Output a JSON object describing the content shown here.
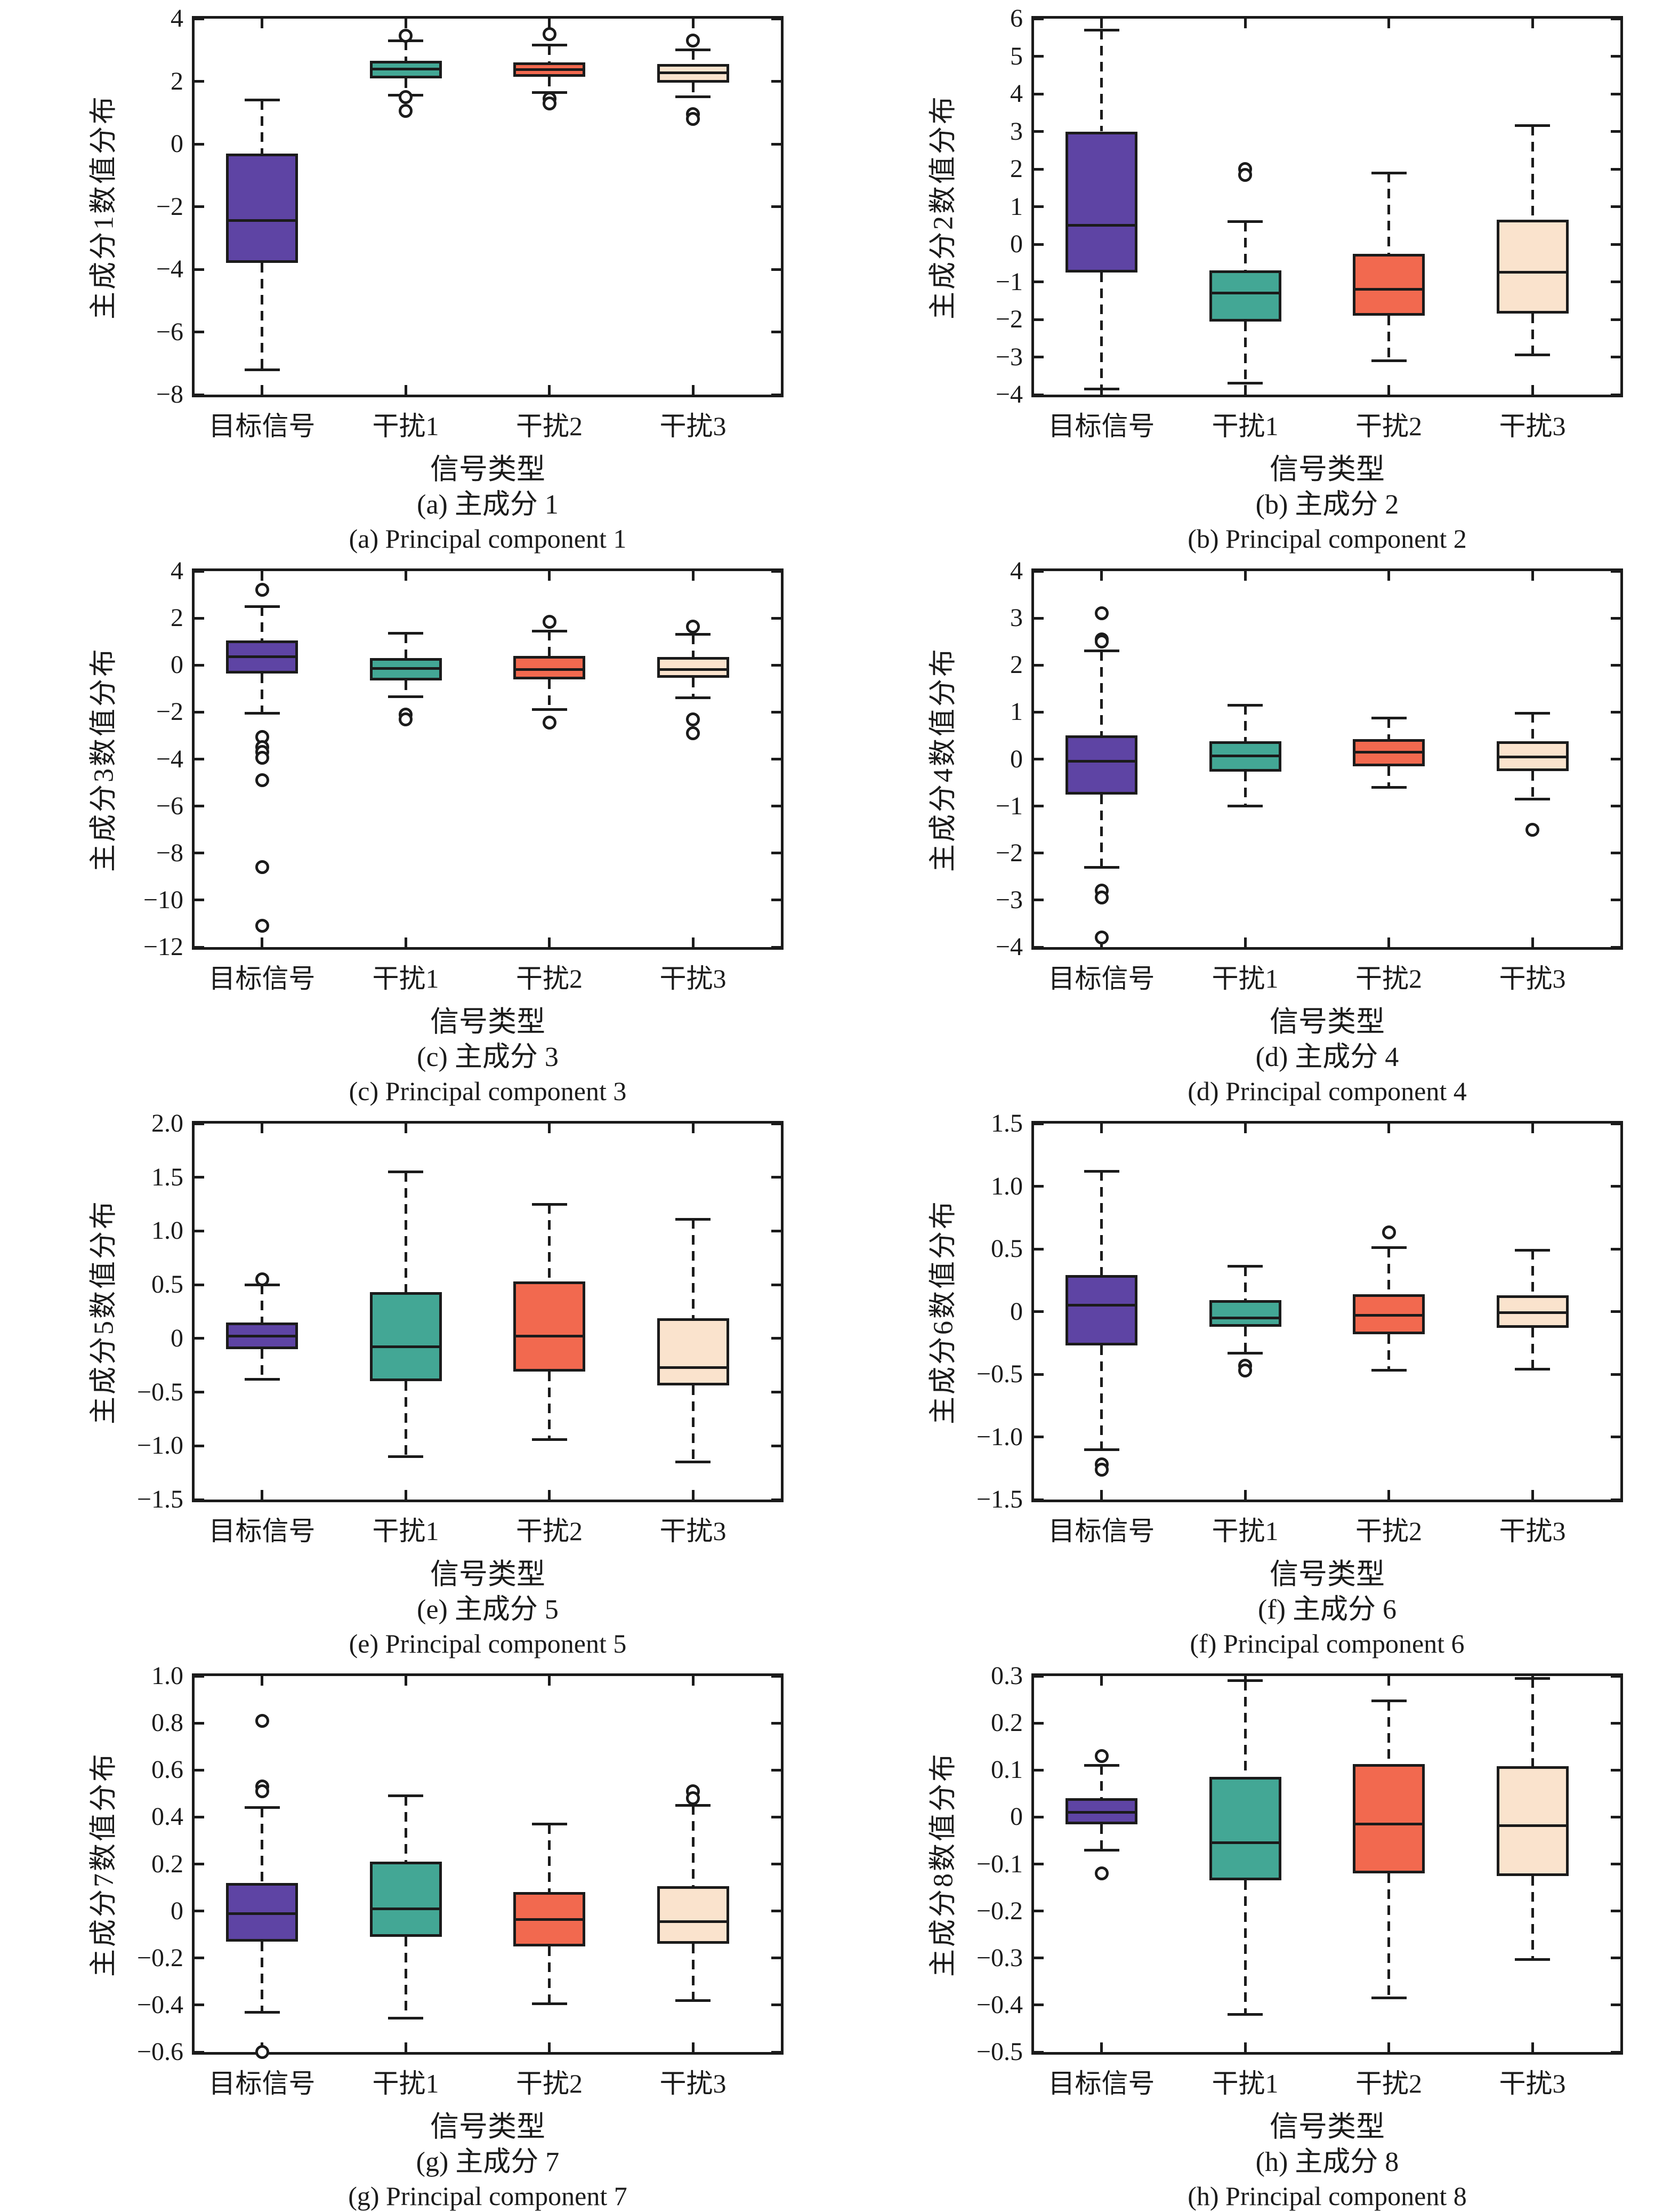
{
  "figure": {
    "background": "#ffffff",
    "xlabel": "信号类型",
    "categories": [
      "目标信号",
      "干扰1",
      "干扰2",
      "干扰3"
    ],
    "colors": {
      "target": "#5E44A4",
      "jam1": "#43A795",
      "jam2": "#F2694F",
      "jam3": "#FAE3CD",
      "line": "#1B1B1B"
    }
  },
  "chart_data": [
    {
      "id": "a",
      "type": "box",
      "ylabel": "主成分1数值分布",
      "caption_zh": "(a) 主成分 1",
      "caption_en": "(a) Principal component 1",
      "ylim": [
        -8,
        4
      ],
      "yticks": [
        {
          "v": -8,
          "label": "−8"
        },
        {
          "v": -6,
          "label": "−6"
        },
        {
          "v": -4,
          "label": "−4"
        },
        {
          "v": -2,
          "label": "−2"
        },
        {
          "v": 0,
          "label": "0"
        },
        {
          "v": 2,
          "label": "2"
        },
        {
          "v": 4,
          "label": "4"
        }
      ],
      "boxes": [
        {
          "category": "目标信号",
          "color": "target",
          "whislo": -7.2,
          "q1": -3.8,
          "med": -2.45,
          "q3": -0.3,
          "whishi": 1.4,
          "fliers": []
        },
        {
          "category": "干扰1",
          "color": "jam1",
          "whislo": 1.55,
          "q1": 2.1,
          "med": 2.4,
          "q3": 2.65,
          "whishi": 3.3,
          "fliers": [
            3.45,
            1.5,
            1.05
          ]
        },
        {
          "category": "干扰2",
          "color": "jam2",
          "whislo": 1.65,
          "q1": 2.15,
          "med": 2.38,
          "q3": 2.6,
          "whishi": 3.15,
          "fliers": [
            3.5,
            1.45,
            1.3
          ]
        },
        {
          "category": "干扰3",
          "color": "jam3",
          "whislo": 1.5,
          "q1": 1.95,
          "med": 2.28,
          "q3": 2.55,
          "whishi": 3.0,
          "fliers": [
            3.3,
            0.95,
            0.8
          ]
        }
      ]
    },
    {
      "id": "b",
      "type": "box",
      "ylabel": "主成分2数值分布",
      "caption_zh": "(b) 主成分 2",
      "caption_en": "(b) Principal component 2",
      "ylim": [
        -4,
        6
      ],
      "yticks": [
        {
          "v": -4,
          "label": "−4"
        },
        {
          "v": -3,
          "label": "−3"
        },
        {
          "v": -2,
          "label": "−2"
        },
        {
          "v": -1,
          "label": "−1"
        },
        {
          "v": 0,
          "label": "0"
        },
        {
          "v": 1,
          "label": "1"
        },
        {
          "v": 2,
          "label": "2"
        },
        {
          "v": 3,
          "label": "3"
        },
        {
          "v": 4,
          "label": "4"
        },
        {
          "v": 5,
          "label": "5"
        },
        {
          "v": 6,
          "label": "6"
        }
      ],
      "boxes": [
        {
          "category": "目标信号",
          "color": "target",
          "whislo": -3.85,
          "q1": -0.75,
          "med": 0.5,
          "q3": 3.0,
          "whishi": 5.7,
          "fliers": []
        },
        {
          "category": "干扰1",
          "color": "jam1",
          "whislo": -3.7,
          "q1": -2.05,
          "med": -1.3,
          "q3": -0.7,
          "whishi": 0.6,
          "fliers": [
            2.0,
            1.85
          ]
        },
        {
          "category": "干扰2",
          "color": "jam2",
          "whislo": -3.1,
          "q1": -1.9,
          "med": -1.2,
          "q3": -0.25,
          "whishi": 1.9,
          "fliers": []
        },
        {
          "category": "干扰3",
          "color": "jam3",
          "whislo": -2.95,
          "q1": -1.85,
          "med": -0.75,
          "q3": 0.65,
          "whishi": 3.15,
          "fliers": []
        }
      ]
    },
    {
      "id": "c",
      "type": "box",
      "ylabel": "主成分3数值分布",
      "caption_zh": "(c) 主成分 3",
      "caption_en": "(c) Principal component 3",
      "ylim": [
        -12,
        4
      ],
      "yticks": [
        {
          "v": -12,
          "label": "−12"
        },
        {
          "v": -10,
          "label": "−10"
        },
        {
          "v": -8,
          "label": "−8"
        },
        {
          "v": -6,
          "label": "−6"
        },
        {
          "v": -4,
          "label": "−4"
        },
        {
          "v": -2,
          "label": "−2"
        },
        {
          "v": 0,
          "label": "0"
        },
        {
          "v": 2,
          "label": "2"
        },
        {
          "v": 4,
          "label": "4"
        }
      ],
      "boxes": [
        {
          "category": "目标信号",
          "color": "target",
          "whislo": -2.05,
          "q1": -0.35,
          "med": 0.35,
          "q3": 1.05,
          "whishi": 2.5,
          "fliers": [
            3.2,
            -3.05,
            -3.5,
            -3.7,
            -3.95,
            -4.9,
            -8.6,
            -11.1
          ]
        },
        {
          "category": "干扰1",
          "color": "jam1",
          "whislo": -1.35,
          "q1": -0.65,
          "med": -0.15,
          "q3": 0.3,
          "whishi": 1.35,
          "fliers": [
            -2.1,
            -2.3
          ]
        },
        {
          "category": "干扰2",
          "color": "jam2",
          "whislo": -1.9,
          "q1": -0.6,
          "med": -0.18,
          "q3": 0.4,
          "whishi": 1.45,
          "fliers": [
            1.85,
            -2.45
          ]
        },
        {
          "category": "干扰3",
          "color": "jam3",
          "whislo": -1.4,
          "q1": -0.55,
          "med": -0.18,
          "q3": 0.35,
          "whishi": 1.3,
          "fliers": [
            1.65,
            -2.3,
            -2.9
          ]
        }
      ]
    },
    {
      "id": "d",
      "type": "box",
      "ylabel": "主成分4数值分布",
      "caption_zh": "(d) 主成分 4",
      "caption_en": "(d) Principal component 4",
      "ylim": [
        -4,
        4
      ],
      "yticks": [
        {
          "v": -4,
          "label": "−4"
        },
        {
          "v": -3,
          "label": "−3"
        },
        {
          "v": -2,
          "label": "−2"
        },
        {
          "v": -1,
          "label": "−1"
        },
        {
          "v": 0,
          "label": "0"
        },
        {
          "v": 1,
          "label": "1"
        },
        {
          "v": 2,
          "label": "2"
        },
        {
          "v": 3,
          "label": "3"
        },
        {
          "v": 4,
          "label": "4"
        }
      ],
      "boxes": [
        {
          "category": "目标信号",
          "color": "target",
          "whislo": -2.3,
          "q1": -0.75,
          "med": -0.05,
          "q3": 0.5,
          "whishi": 2.3,
          "fliers": [
            3.1,
            2.55,
            2.5,
            -2.8,
            -2.95,
            -3.8
          ]
        },
        {
          "category": "干扰1",
          "color": "jam1",
          "whislo": -1.0,
          "q1": -0.27,
          "med": 0.07,
          "q3": 0.38,
          "whishi": 1.15,
          "fliers": []
        },
        {
          "category": "干扰2",
          "color": "jam2",
          "whislo": -0.6,
          "q1": -0.15,
          "med": 0.15,
          "q3": 0.42,
          "whishi": 0.87,
          "fliers": []
        },
        {
          "category": "干扰3",
          "color": "jam3",
          "whislo": -0.85,
          "q1": -0.25,
          "med": 0.05,
          "q3": 0.38,
          "whishi": 0.98,
          "fliers": [
            -1.5
          ]
        }
      ]
    },
    {
      "id": "e",
      "type": "box",
      "ylabel": "主成分5数值分布",
      "caption_zh": "(e) 主成分 5",
      "caption_en": "(e) Principal component 5",
      "ylim": [
        -1.5,
        2.0
      ],
      "yticks": [
        {
          "v": -1.5,
          "label": "−1.5"
        },
        {
          "v": -1.0,
          "label": "−1.0"
        },
        {
          "v": -0.5,
          "label": "−0.5"
        },
        {
          "v": 0,
          "label": "0"
        },
        {
          "v": 0.5,
          "label": "0.5"
        },
        {
          "v": 1.0,
          "label": "1.0"
        },
        {
          "v": 1.5,
          "label": "1.5"
        },
        {
          "v": 2.0,
          "label": "2.0"
        }
      ],
      "boxes": [
        {
          "category": "目标信号",
          "color": "target",
          "whislo": -0.38,
          "q1": -0.1,
          "med": 0.02,
          "q3": 0.15,
          "whishi": 0.5,
          "fliers": [
            0.55
          ]
        },
        {
          "category": "干扰1",
          "color": "jam1",
          "whislo": -1.1,
          "q1": -0.4,
          "med": -0.08,
          "q3": 0.43,
          "whishi": 1.55,
          "fliers": []
        },
        {
          "category": "干扰2",
          "color": "jam2",
          "whislo": -0.94,
          "q1": -0.31,
          "med": 0.02,
          "q3": 0.53,
          "whishi": 1.25,
          "fliers": []
        },
        {
          "category": "干扰3",
          "color": "jam3",
          "whislo": -1.15,
          "q1": -0.44,
          "med": -0.27,
          "q3": 0.19,
          "whishi": 1.11,
          "fliers": []
        }
      ]
    },
    {
      "id": "f",
      "type": "box",
      "ylabel": "主成分6数值分布",
      "caption_zh": "(f) 主成分 6",
      "caption_en": "(f) Principal component 6",
      "ylim": [
        -1.5,
        1.5
      ],
      "yticks": [
        {
          "v": -1.5,
          "label": "−1.5"
        },
        {
          "v": -1.0,
          "label": "−1.0"
        },
        {
          "v": -0.5,
          "label": "−0.5"
        },
        {
          "v": 0,
          "label": "0"
        },
        {
          "v": 0.5,
          "label": "0.5"
        },
        {
          "v": 1.0,
          "label": "1.0"
        },
        {
          "v": 1.5,
          "label": "1.5"
        }
      ],
      "boxes": [
        {
          "category": "目标信号",
          "color": "target",
          "whislo": -1.1,
          "q1": -0.27,
          "med": 0.05,
          "q3": 0.29,
          "whishi": 1.12,
          "fliers": [
            -1.22,
            -1.26
          ]
        },
        {
          "category": "干扰1",
          "color": "jam1",
          "whislo": -0.33,
          "q1": -0.12,
          "med": -0.05,
          "q3": 0.09,
          "whishi": 0.36,
          "fliers": [
            -0.43,
            -0.47
          ]
        },
        {
          "category": "干扰2",
          "color": "jam2",
          "whislo": -0.47,
          "q1": -0.18,
          "med": -0.03,
          "q3": 0.14,
          "whishi": 0.51,
          "fliers": [
            0.63
          ]
        },
        {
          "category": "干扰3",
          "color": "jam3",
          "whislo": -0.46,
          "q1": -0.13,
          "med": -0.01,
          "q3": 0.13,
          "whishi": 0.49,
          "fliers": []
        }
      ]
    },
    {
      "id": "g",
      "type": "box",
      "ylabel": "主成分7数值分布",
      "caption_zh": "(g) 主成分 7",
      "caption_en": "(g) Principal component 7",
      "ylim": [
        -0.6,
        1.0
      ],
      "yticks": [
        {
          "v": -0.6,
          "label": "−0.6"
        },
        {
          "v": -0.4,
          "label": "−0.4"
        },
        {
          "v": -0.2,
          "label": "−0.2"
        },
        {
          "v": 0,
          "label": "0"
        },
        {
          "v": 0.2,
          "label": "0.2"
        },
        {
          "v": 0.4,
          "label": "0.4"
        },
        {
          "v": 0.6,
          "label": "0.6"
        },
        {
          "v": 0.8,
          "label": "0.8"
        },
        {
          "v": 1.0,
          "label": "1.0"
        }
      ],
      "boxes": [
        {
          "category": "目标信号",
          "color": "target",
          "whislo": -0.43,
          "q1": -0.13,
          "med": -0.01,
          "q3": 0.12,
          "whishi": 0.44,
          "fliers": [
            0.81,
            0.53,
            0.51,
            -0.6
          ]
        },
        {
          "category": "干扰1",
          "color": "jam1",
          "whislo": -0.455,
          "q1": -0.11,
          "med": 0.01,
          "q3": 0.21,
          "whishi": 0.49,
          "fliers": []
        },
        {
          "category": "干扰2",
          "color": "jam2",
          "whislo": -0.395,
          "q1": -0.15,
          "med": -0.035,
          "q3": 0.08,
          "whishi": 0.37,
          "fliers": []
        },
        {
          "category": "干扰3",
          "color": "jam3",
          "whislo": -0.38,
          "q1": -0.14,
          "med": -0.045,
          "q3": 0.105,
          "whishi": 0.45,
          "fliers": [
            0.51,
            0.48
          ]
        }
      ]
    },
    {
      "id": "h",
      "type": "box",
      "ylabel": "主成分8数值分布",
      "caption_zh": "(h) 主成分 8",
      "caption_en": "(h) Principal component 8",
      "ylim": [
        -0.5,
        0.3
      ],
      "yticks": [
        {
          "v": -0.5,
          "label": "−0.5"
        },
        {
          "v": -0.4,
          "label": "−0.4"
        },
        {
          "v": -0.3,
          "label": "−0.3"
        },
        {
          "v": -0.2,
          "label": "−0.2"
        },
        {
          "v": -0.1,
          "label": "−0.1"
        },
        {
          "v": 0,
          "label": "0"
        },
        {
          "v": 0.1,
          "label": "0.1"
        },
        {
          "v": 0.2,
          "label": "0.2"
        },
        {
          "v": 0.3,
          "label": "0.3"
        }
      ],
      "boxes": [
        {
          "category": "目标信号",
          "color": "target",
          "whislo": -0.07,
          "q1": -0.015,
          "med": 0.01,
          "q3": 0.04,
          "whishi": 0.11,
          "fliers": [
            0.13,
            -0.12
          ]
        },
        {
          "category": "干扰1",
          "color": "jam1",
          "whislo": -0.42,
          "q1": -0.135,
          "med": -0.055,
          "q3": 0.085,
          "whishi": 0.29,
          "fliers": []
        },
        {
          "category": "干扰2",
          "color": "jam2",
          "whislo": -0.385,
          "q1": -0.12,
          "med": -0.015,
          "q3": 0.113,
          "whishi": 0.247,
          "fliers": []
        },
        {
          "category": "干扰3",
          "color": "jam3",
          "whislo": -0.303,
          "q1": -0.125,
          "med": -0.018,
          "q3": 0.108,
          "whishi": 0.295,
          "fliers": []
        }
      ]
    }
  ]
}
